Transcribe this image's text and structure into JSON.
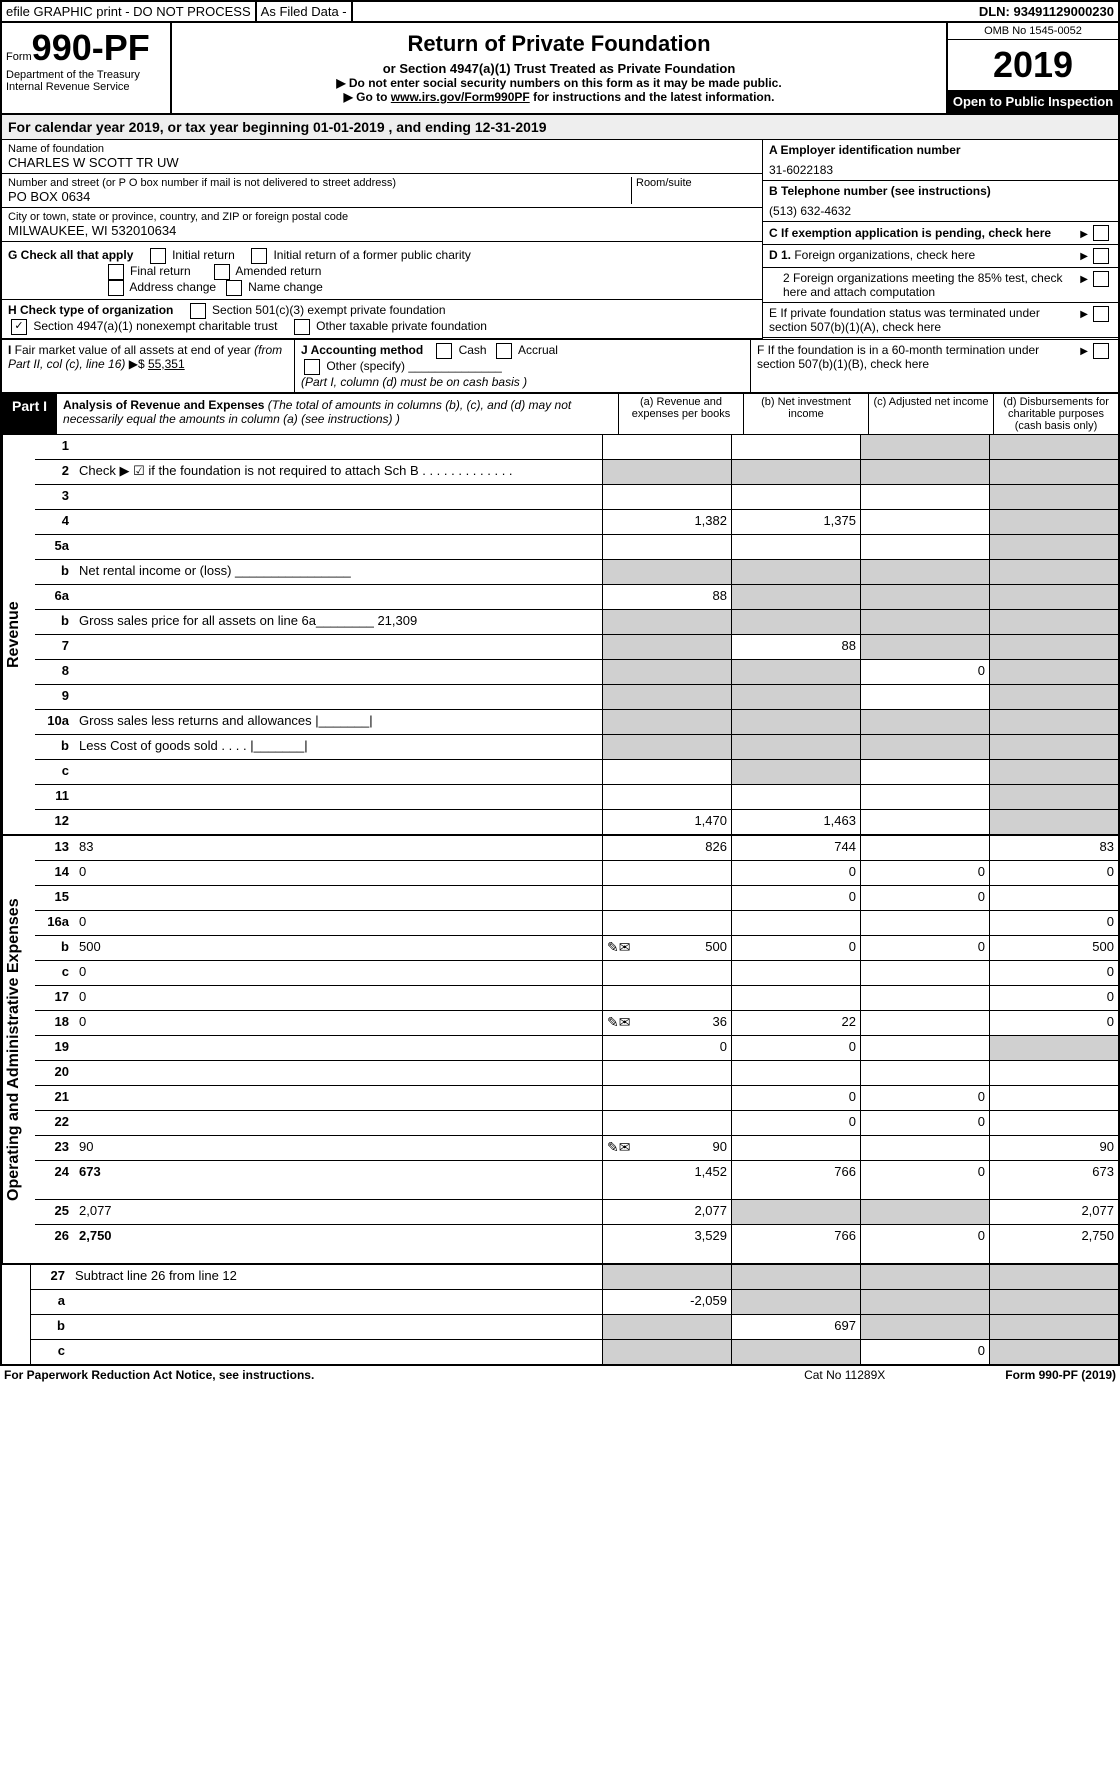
{
  "header": {
    "efile": "efile GRAPHIC print - DO NOT PROCESS",
    "asFiled": "As Filed Data -",
    "dln": "DLN: 93491129000230"
  },
  "formId": {
    "formPrefix": "Form",
    "formNumber": "990-PF",
    "dept": "Department of the Treasury",
    "irs": "Internal Revenue Service"
  },
  "title": {
    "main": "Return of Private Foundation",
    "sub": "or Section 4947(a)(1) Trust Treated as Private Foundation",
    "instr1": "▶ Do not enter social security numbers on this form as it may be made public.",
    "instr2Prefix": "▶ Go to ",
    "instr2Link": "www.irs.gov/Form990PF",
    "instr2Suffix": " for instructions and the latest information."
  },
  "yearBox": {
    "omb": "OMB No 1545-0052",
    "year": "2019",
    "inspect": "Open to Public Inspection"
  },
  "calYear": {
    "prefix": "For calendar year 2019, or tax year beginning ",
    "begin": "01-01-2019",
    "mid": " , and ending ",
    "end": "12-31-2019"
  },
  "foundation": {
    "nameLabel": "Name of foundation",
    "name": "CHARLES W SCOTT TR UW",
    "addrLabel": "Number and street (or P O  box number if mail is not delivered to street address)",
    "roomLabel": "Room/suite",
    "addr": "PO BOX 0634",
    "cityLabel": "City or town, state or province, country, and ZIP or foreign postal code",
    "city": "MILWAUKEE, WI  532010634"
  },
  "right": {
    "aLabel": "A Employer identification number",
    "aValue": "31-6022183",
    "bLabel": "B Telephone number (see instructions)",
    "bValue": "(513) 632-4632",
    "cLabel": "C If exemption application is pending, check here",
    "d1": "D 1. Foreign organizations, check here",
    "d2": "2 Foreign organizations meeting the 85% test, check here and attach computation",
    "e": "E  If private foundation status was terminated under section 507(b)(1)(A), check here",
    "f": "F  If the foundation is in a 60-month termination under section 507(b)(1)(B), check here"
  },
  "gCheck": {
    "label": "G Check all that apply",
    "initial": "Initial return",
    "initialFormer": "Initial return of a former public charity",
    "final": "Final return",
    "amended": "Amended return",
    "address": "Address change",
    "name": "Name change"
  },
  "hCheck": {
    "label": "H Check type of organization",
    "s501c3": "Section 501(c)(3) exempt private foundation",
    "s4947": "Section 4947(a)(1) nonexempt charitable trust",
    "other": "Other taxable private foundation"
  },
  "iFmv": {
    "label": "I Fair market value of all assets at end of year (from Part II, col  (c), line 16) ▶$ ",
    "value": "55,351"
  },
  "jAcct": {
    "label": "J Accounting method",
    "cash": "Cash",
    "accrual": "Accrual",
    "other": "Other (specify)",
    "note": "(Part I, column (d) must be on cash basis )"
  },
  "part1": {
    "label": "Part I",
    "title": "Analysis of Revenue and Expenses",
    "desc": " (The total of amounts in columns (b), (c), and (d) may not necessarily equal the amounts in column (a) (see instructions) )",
    "colA": "(a)  Revenue and expenses per books",
    "colB": "(b)  Net investment income",
    "colC": "(c)  Adjusted net income",
    "colD": "(d)  Disbursements for charitable purposes (cash basis only)"
  },
  "sideLabels": {
    "revenue": "Revenue",
    "expenses": "Operating and Administrative Expenses"
  },
  "rows": [
    {
      "n": "1",
      "d": "",
      "a": "",
      "b": "",
      "c": "",
      "shB": false,
      "shC": true,
      "shD": true
    },
    {
      "n": "2",
      "d": "Check ▶ ☑ if the foundation is not required to attach Sch B       .   .   .   .   .   .   .   .   .   .   .   .   .",
      "allShaded": true
    },
    {
      "n": "3",
      "d": "",
      "a": "",
      "b": "",
      "c": "",
      "shD": true
    },
    {
      "n": "4",
      "d": "",
      "a": "1,382",
      "b": "1,375",
      "c": "",
      "shD": true
    },
    {
      "n": "5a",
      "d": "",
      "a": "",
      "b": "",
      "c": "",
      "shD": true
    },
    {
      "n": "b",
      "d": "Net rental income or (loss)   ________________",
      "allShaded": true
    },
    {
      "n": "6a",
      "d": "",
      "a": "88",
      "b": "",
      "c": "",
      "shB": true,
      "shC": true,
      "shD": true
    },
    {
      "n": "b",
      "d": "Gross sales price for all assets on line 6a________  21,309",
      "allShaded": true
    },
    {
      "n": "7",
      "d": "",
      "a": "",
      "b": "88",
      "c": "",
      "shA": true,
      "shC": true,
      "shD": true
    },
    {
      "n": "8",
      "d": "",
      "a": "",
      "b": "",
      "c": "0",
      "shA": true,
      "shB": true,
      "shD": true
    },
    {
      "n": "9",
      "d": "",
      "a": "",
      "b": "",
      "c": "",
      "shA": true,
      "shB": true,
      "shD": true
    },
    {
      "n": "10a",
      "d": "Gross sales less returns and allowances |_______|",
      "allShaded": true
    },
    {
      "n": "b",
      "d": "Less  Cost of goods sold    .   .   .   .  |_______|",
      "allShaded": true
    },
    {
      "n": "c",
      "d": "",
      "a": "",
      "b": "",
      "c": "",
      "shB": true,
      "shD": true
    },
    {
      "n": "11",
      "d": "",
      "a": "",
      "b": "",
      "c": "",
      "shD": true
    },
    {
      "n": "12",
      "d": "",
      "a": "1,470",
      "b": "1,463",
      "c": "",
      "bold": true,
      "shD": true
    }
  ],
  "expRows": [
    {
      "n": "13",
      "d": "83",
      "a": "826",
      "b": "744",
      "c": ""
    },
    {
      "n": "14",
      "d": "0",
      "a": "",
      "b": "0",
      "c": "0"
    },
    {
      "n": "15",
      "d": "",
      "a": "",
      "b": "0",
      "c": "0"
    },
    {
      "n": "16a",
      "d": "0",
      "a": "",
      "b": "",
      "c": ""
    },
    {
      "n": "b",
      "d": "500",
      "a": "500",
      "b": "0",
      "c": "0",
      "pen": true
    },
    {
      "n": "c",
      "d": "0",
      "a": "",
      "b": "",
      "c": ""
    },
    {
      "n": "17",
      "d": "0",
      "a": "",
      "b": "",
      "c": ""
    },
    {
      "n": "18",
      "d": "0",
      "a": "36",
      "b": "22",
      "c": "",
      "pen": true
    },
    {
      "n": "19",
      "d": "",
      "a": "0",
      "b": "0",
      "c": "",
      "shD": true
    },
    {
      "n": "20",
      "d": "",
      "a": "",
      "b": "",
      "c": ""
    },
    {
      "n": "21",
      "d": "",
      "a": "",
      "b": "0",
      "c": "0"
    },
    {
      "n": "22",
      "d": "",
      "a": "",
      "b": "0",
      "c": "0"
    },
    {
      "n": "23",
      "d": "90",
      "a": "90",
      "b": "",
      "c": "",
      "pen": true
    },
    {
      "n": "24",
      "d": "673",
      "a": "1,452",
      "b": "766",
      "c": "0",
      "bold": true,
      "tall": true
    },
    {
      "n": "25",
      "d": "2,077",
      "a": "2,077",
      "b": "",
      "c": "",
      "shB": true,
      "shC": true
    },
    {
      "n": "26",
      "d": "2,750",
      "a": "3,529",
      "b": "766",
      "c": "0",
      "bold": true,
      "tall": true
    }
  ],
  "netRows": [
    {
      "n": "27",
      "d": "Subtract line 26 from line 12",
      "allShaded": true
    },
    {
      "n": "a",
      "d": "",
      "a": "-2,059",
      "b": "",
      "c": "",
      "bold": true,
      "shB": true,
      "shC": true,
      "shD": true
    },
    {
      "n": "b",
      "d": "",
      "a": "",
      "b": "697",
      "c": "",
      "bold": true,
      "shA": true,
      "shC": true,
      "shD": true
    },
    {
      "n": "c",
      "d": "",
      "a": "",
      "b": "",
      "c": "0",
      "bold": true,
      "shA": true,
      "shB": true,
      "shD": true
    }
  ],
  "footer": {
    "left": "For Paperwork Reduction Act Notice, see instructions.",
    "mid": "Cat  No  11289X",
    "right": "Form 990-PF (2019)"
  }
}
